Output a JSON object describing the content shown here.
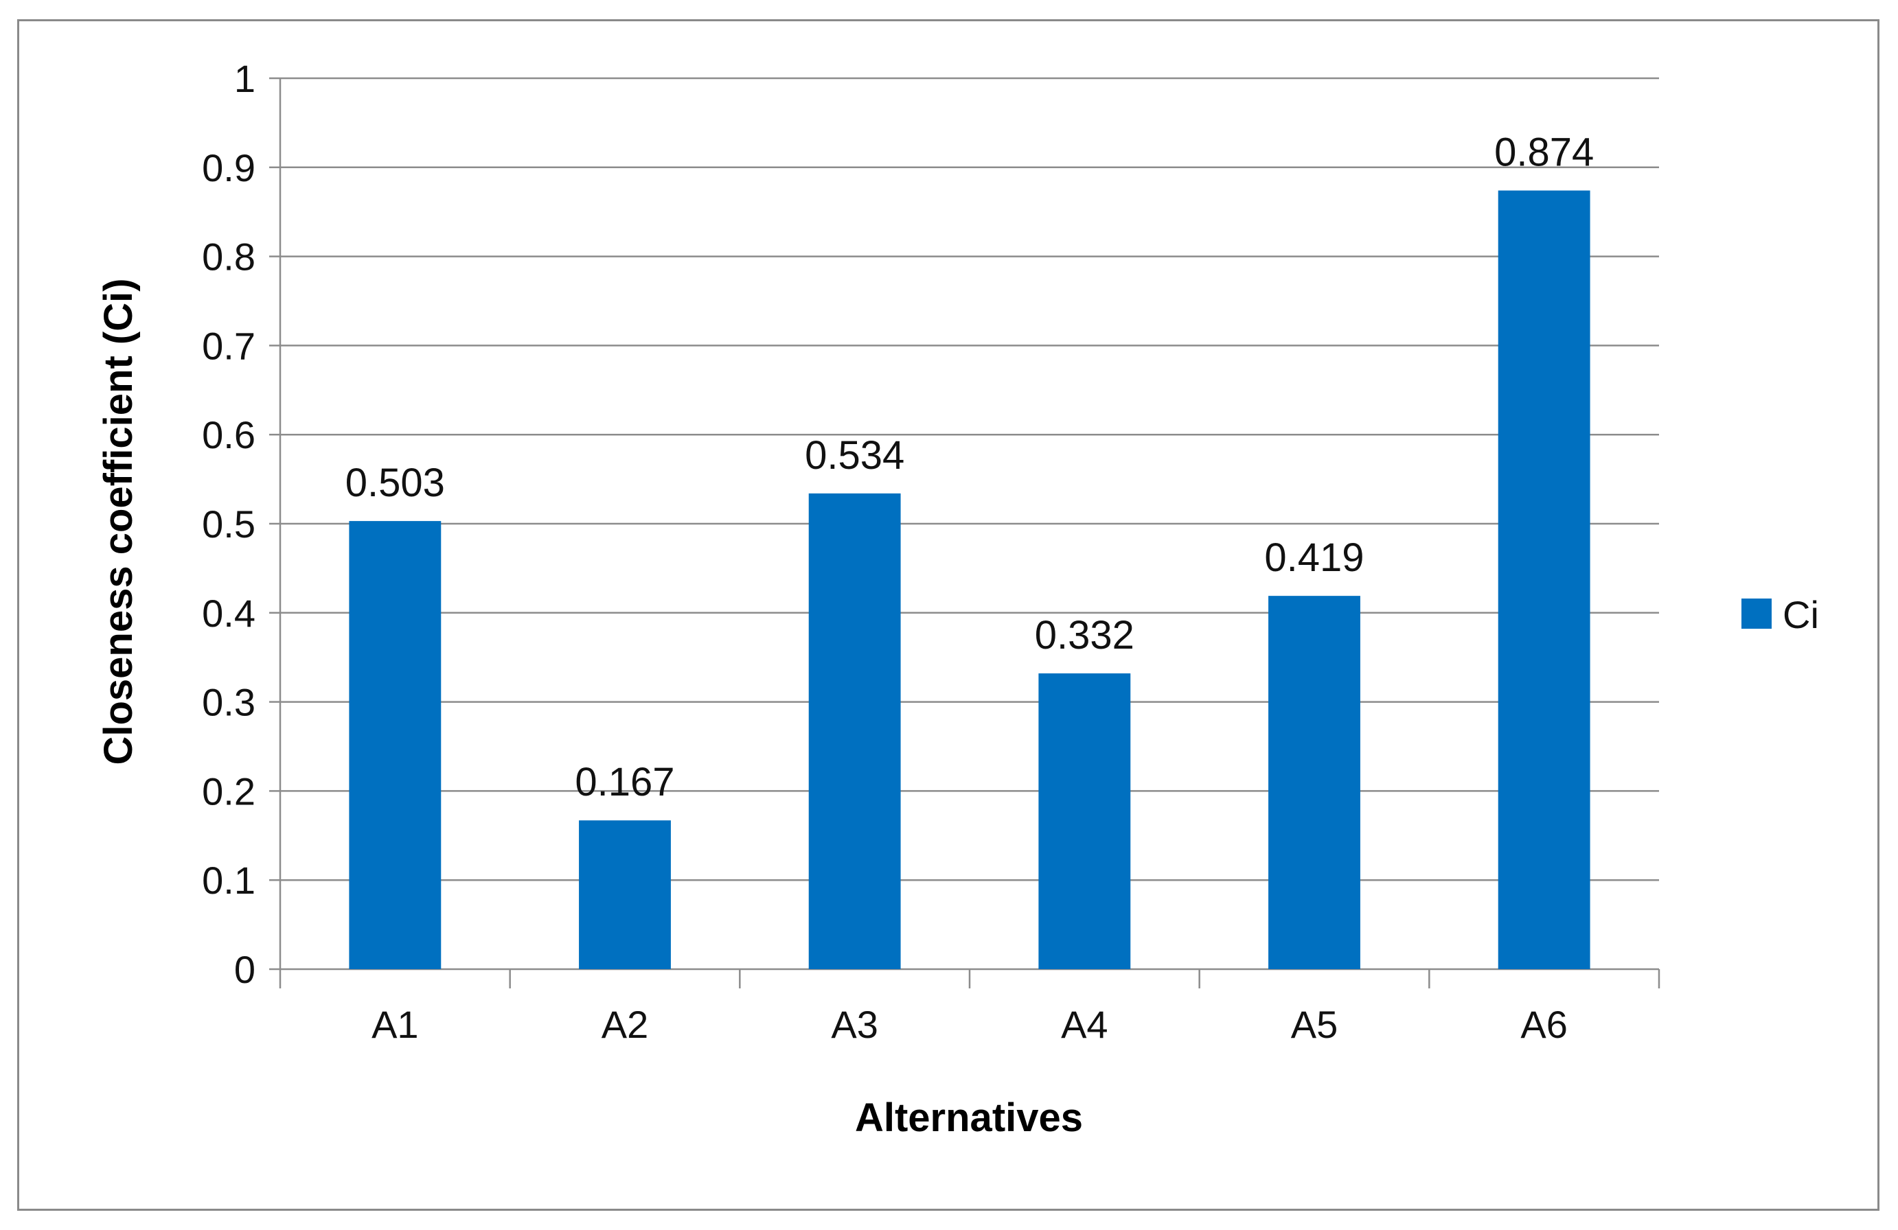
{
  "chart_data": {
    "type": "bar",
    "categories": [
      "A1",
      "A2",
      "A3",
      "A4",
      "A5",
      "A6"
    ],
    "series": [
      {
        "name": "Ci",
        "values": [
          0.503,
          0.167,
          0.534,
          0.332,
          0.419,
          0.874
        ],
        "data_labels": [
          "0.503",
          "0.167",
          "0.534",
          "0.332",
          "0.419",
          "0.874"
        ],
        "color": "#0070c0"
      }
    ],
    "xlabel": "Alternatives",
    "ylabel": "Closeness coefficient (Ci)",
    "ylim": [
      0,
      1
    ],
    "yticks": [
      0,
      0.1,
      0.2,
      0.3,
      0.4,
      0.5,
      0.6,
      0.7,
      0.8,
      0.9,
      1
    ],
    "ytick_labels": [
      "0",
      "0.1",
      "0.2",
      "0.3",
      "0.4",
      "0.5",
      "0.6",
      "0.7",
      "0.8",
      "0.9",
      "1"
    ],
    "grid": "horizontal",
    "legend_position": "right"
  },
  "colors": {
    "bar": "#0070c0",
    "gridline": "#8c8c8c",
    "axis": "#8c8c8c",
    "frame": "#8a8a8a"
  }
}
